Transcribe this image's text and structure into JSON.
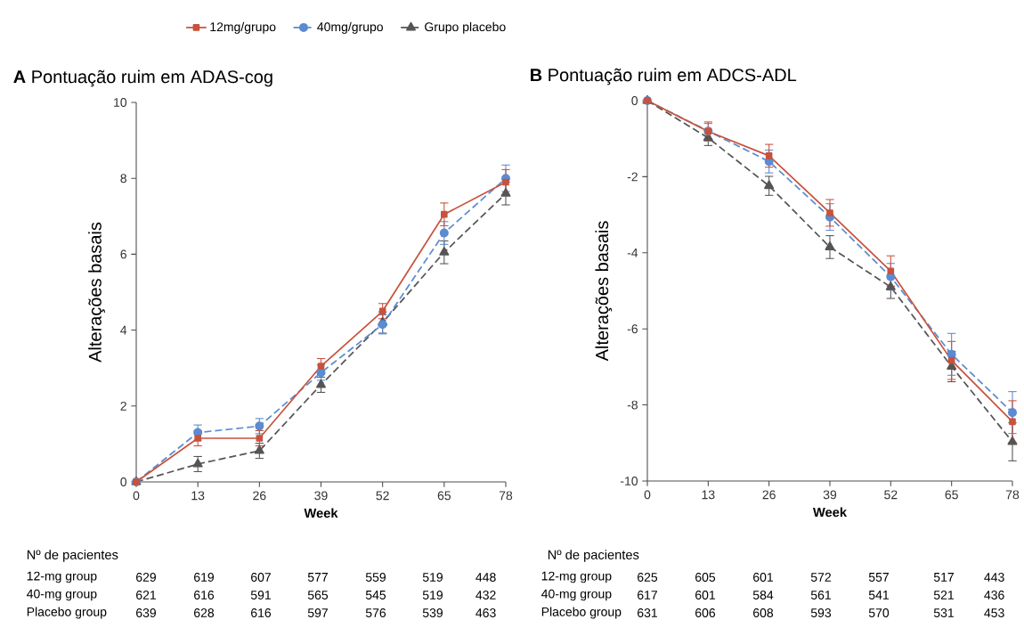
{
  "chart_data": [
    {
      "type": "line",
      "title": "**A**  Pontuação ruim em ADAS-cog",
      "xlabel": "Week",
      "ylabel": "Alterações basais",
      "x": [
        0,
        13,
        26,
        39,
        52,
        65,
        78
      ],
      "xlim": [
        0,
        78
      ],
      "xticks": [
        0,
        13,
        26,
        39,
        52,
        65,
        78
      ],
      "ylim": [
        0,
        10
      ],
      "yticks": [
        0,
        2,
        4,
        6,
        8,
        10
      ],
      "legend": "top",
      "grid": false,
      "series": [
        {
          "name": "12mg/grupo",
          "color": "#c8523c",
          "marker": "square",
          "line_style": "solid",
          "values": [
            0,
            1.15,
            1.15,
            3.05,
            4.5,
            7.05,
            7.9
          ],
          "errors": [
            null,
            0.2,
            0.2,
            0.2,
            0.2,
            0.3,
            0.33
          ]
        },
        {
          "name": "40mg/grupo",
          "color": "#5b8bd0",
          "marker": "circle",
          "line_style": "dashed",
          "values": [
            0,
            1.3,
            1.47,
            2.88,
            4.15,
            6.56,
            8.0
          ],
          "errors": [
            null,
            0.2,
            0.2,
            0.2,
            0.25,
            0.3,
            0.35
          ]
        },
        {
          "name": "Grupo placebo",
          "color": "#555555",
          "marker": "triangle",
          "line_style": "dashed",
          "values": [
            0,
            0.47,
            0.82,
            2.56,
            4.2,
            6.05,
            7.6
          ],
          "errors": [
            null,
            0.2,
            0.2,
            0.2,
            0.28,
            0.3,
            0.3
          ]
        }
      ],
      "annotations": [
        "Nº de pacientes",
        "12-mg group",
        "629",
        "619",
        "607",
        "577",
        "559",
        "519",
        "448",
        "40-mg group",
        "621",
        "616",
        "591",
        "565",
        "545",
        "519",
        "432",
        "Placebo group",
        "639",
        "628",
        "616",
        "597",
        "576",
        "539",
        "463"
      ]
    },
    {
      "type": "line",
      "title": "**B**  Pontuação ruim em ADCS-ADL",
      "xlabel": "Week",
      "ylabel": "Alterações basais",
      "x": [
        0,
        13,
        26,
        39,
        52,
        65,
        78
      ],
      "xlim": [
        0,
        78
      ],
      "xticks": [
        0,
        13,
        26,
        39,
        52,
        65,
        78
      ],
      "ylim": [
        -10,
        0
      ],
      "yticks": [
        -10,
        -8,
        -6,
        -4,
        -2,
        0
      ],
      "grid": false,
      "series": [
        {
          "color": "#c8523c",
          "marker": "square",
          "line_style": "solid",
          "values": [
            0,
            -0.81,
            -1.45,
            -2.95,
            -4.48,
            -6.83,
            -8.44
          ],
          "errors": [
            null,
            0.25,
            0.3,
            0.35,
            0.4,
            0.5,
            0.55
          ]
        },
        {
          "color": "#5b8bd0",
          "marker": "circle",
          "line_style": "dashed",
          "values": [
            0,
            -0.8,
            -1.6,
            -3.06,
            -4.63,
            -6.67,
            -8.2
          ],
          "errors": [
            null,
            0.2,
            0.3,
            0.35,
            0.35,
            0.55,
            0.55
          ]
        },
        {
          "color": "#555555",
          "marker": "triangle",
          "line_style": "dashed",
          "values": [
            0,
            -0.98,
            -2.24,
            -3.85,
            -4.9,
            -6.99,
            -8.97
          ],
          "errors": [
            null,
            0.2,
            0.25,
            0.3,
            0.3,
            0.4,
            0.5
          ]
        }
      ],
      "annotations": [
        "Nº de pacientes",
        "12-mg group",
        "625",
        "605",
        "601",
        "572",
        "557",
        "517",
        "443",
        "40-mg group",
        "617",
        "601",
        "584",
        "561",
        "541",
        "521",
        "436",
        "Placebo group",
        "631",
        "606",
        "608",
        "593",
        "570",
        "531",
        "453"
      ]
    }
  ]
}
